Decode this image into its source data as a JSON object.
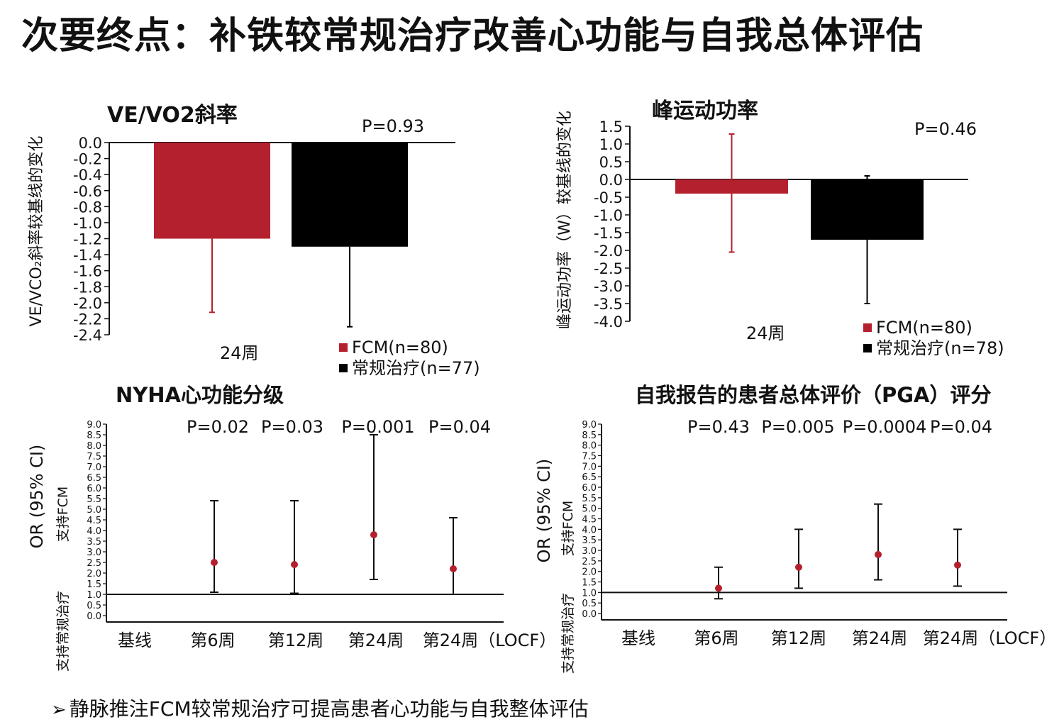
{
  "page": {
    "title": "次要终点：补铁较常规治疗改善心功能与自我总体评估",
    "footnote": "静脉推注FCM较常规治疗可提高患者心功能与自我整体评估",
    "footnote_bullet": "➢",
    "colors": {
      "fcm": "#b5202e",
      "control": "#000000",
      "point": "#b5202e",
      "accent": "#d9262f"
    }
  },
  "chart_data": [
    {
      "id": "ve-vco2",
      "type": "bar",
      "title": "VE/VO2斜率",
      "ylabel": "VE/VCO₂斜率较基线的变化",
      "xlabel": "24周",
      "categories": [
        "24周"
      ],
      "ylim": [
        -2.4,
        0.0
      ],
      "yticks": [
        "0.0",
        "-0.2",
        "-0.4",
        "-0.6",
        "-0.8",
        "-1.0",
        "-1.2",
        "-1.4",
        "-1.6",
        "-1.8",
        "-2.0",
        "-2.2",
        "-2.4"
      ],
      "pvalue": "P=0.93",
      "series": [
        {
          "name": "FCM(n=80)",
          "color": "#b5202e",
          "values": [
            -1.2
          ],
          "error_low": [
            -2.12
          ],
          "error_high": [
            -1.2
          ]
        },
        {
          "name": "常规治疗(n=77)",
          "color": "#000000",
          "values": [
            -1.3
          ],
          "error_low": [
            -2.3
          ],
          "error_high": [
            -1.3
          ]
        }
      ]
    },
    {
      "id": "peak-power",
      "type": "bar",
      "title": "峰运动功率",
      "ylabel": "峰运动功率（W）较基线的变化",
      "xlabel": "24周",
      "categories": [
        "24周"
      ],
      "ylim": [
        -4.0,
        1.5
      ],
      "yticks": [
        "1.5",
        "1.0",
        "0.5",
        "0.0",
        "-0.5",
        "-1.0",
        "-1.5",
        "-2.0",
        "-2.5",
        "-3.0",
        "-3.5",
        "-4.0"
      ],
      "pvalue": "P=0.46",
      "series": [
        {
          "name": "FCM(n=80)",
          "color": "#b5202e",
          "values": [
            -0.4
          ],
          "error_low": [
            -2.05
          ],
          "error_high": [
            1.28
          ]
        },
        {
          "name": "常规治疗(n=78)",
          "color": "#000000",
          "values": [
            -1.7
          ],
          "error_low": [
            -3.5
          ],
          "error_high": [
            0.1
          ]
        }
      ]
    },
    {
      "id": "nyha",
      "type": "scatter",
      "title": "NYHA心功能分级",
      "ylabel": "OR (95% CI)",
      "ylabel_favor_top": "支持FCM",
      "ylabel_favor_bottom": "支持常规治疗",
      "categories": [
        "基线",
        "第6周",
        "第12周",
        "第24周",
        "第24周（LOCF）"
      ],
      "ylim": [
        0.0,
        9.0
      ],
      "yticks": [
        "0.0",
        "0.5",
        "1.0",
        "1.5",
        "2.0",
        "2.5",
        "3.0",
        "3.5",
        "4.0",
        "4.5",
        "5.0",
        "5.5",
        "6.0",
        "6.5",
        "7.0",
        "7.5",
        "8.0",
        "8.5",
        "9.0"
      ],
      "reference_line": 1.0,
      "pvalues": [
        "P=0.02",
        "P=0.03",
        "P=0.001",
        "P=0.04"
      ],
      "points": [
        {
          "category": "第6周",
          "or": 2.5,
          "ci_low": 1.1,
          "ci_high": 5.4
        },
        {
          "category": "第12周",
          "or": 2.4,
          "ci_low": 1.05,
          "ci_high": 5.4
        },
        {
          "category": "第24周",
          "or": 3.8,
          "ci_low": 1.7,
          "ci_high": 8.5
        },
        {
          "category": "第24周（LOCF）",
          "or": 2.2,
          "ci_low": 1.0,
          "ci_high": 4.6
        }
      ]
    },
    {
      "id": "pga",
      "type": "scatter",
      "title": "自我报告的患者总体评价（PGA）评分",
      "ylabel": "OR (95% CI)",
      "ylabel_favor_top": "支持FCM",
      "ylabel_favor_bottom": "支持常规治疗",
      "categories": [
        "基线",
        "第6周",
        "第12周",
        "第24周",
        "第24周（LOCF）"
      ],
      "ylim": [
        0.0,
        9.0
      ],
      "yticks": [
        "0.0",
        "0.5",
        "1.0",
        "1.5",
        "2.0",
        "2.5",
        "3.0",
        "3.5",
        "4.0",
        "4.5",
        "5.0",
        "5.5",
        "6.0",
        "6.5",
        "7.0",
        "7.5",
        "8.0",
        "8.5",
        "9.0"
      ],
      "reference_line": 1.0,
      "pvalues": [
        "P=0.43",
        "P=0.005",
        "P=0.0004",
        "P=0.04"
      ],
      "points": [
        {
          "category": "第6周",
          "or": 1.2,
          "ci_low": 0.7,
          "ci_high": 2.2
        },
        {
          "category": "第12周",
          "or": 2.2,
          "ci_low": 1.2,
          "ci_high": 4.0
        },
        {
          "category": "第24周",
          "or": 2.8,
          "ci_low": 1.6,
          "ci_high": 5.2
        },
        {
          "category": "第24周（LOCF）",
          "or": 2.3,
          "ci_low": 1.3,
          "ci_high": 4.0
        }
      ]
    }
  ]
}
